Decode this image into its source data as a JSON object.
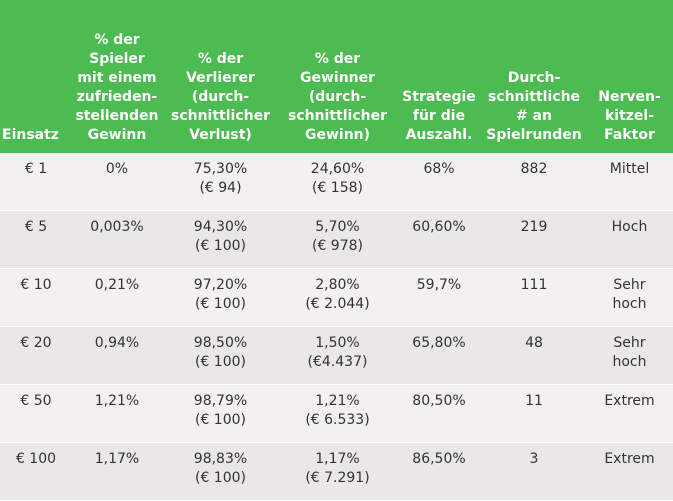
{
  "table": {
    "headers": [
      [
        "Einsatz"
      ],
      [
        "% der",
        "Spieler",
        "mit einem",
        "zufrieden-",
        "stellenden",
        "Gewinn"
      ],
      [
        "% der",
        "Verlierer",
        "(durch-",
        "schnittlicher",
        "Verlust)"
      ],
      [
        "% der",
        "Gewinner",
        "(durch-",
        "schnittlicher",
        "Gewinn)"
      ],
      [
        "Strategie",
        "für die",
        "Auszahl."
      ],
      [
        "Durch-",
        "schnittliche",
        "# an",
        "Spielrunden"
      ],
      [
        "Nerven-",
        "kitzel-",
        "Faktor"
      ]
    ],
    "rows": [
      [
        [
          "€ 1"
        ],
        [
          "0%"
        ],
        [
          "75,30%",
          "(€ 94)"
        ],
        [
          "24,60%",
          "(€ 158)"
        ],
        [
          "68%"
        ],
        [
          "882"
        ],
        [
          "Mittel"
        ]
      ],
      [
        [
          "€ 5"
        ],
        [
          "0,003%"
        ],
        [
          "94,30%",
          "(€ 100)"
        ],
        [
          "5,70%",
          "(€ 978)"
        ],
        [
          "60,60%"
        ],
        [
          "219"
        ],
        [
          "Hoch"
        ]
      ],
      [
        [
          "€ 10"
        ],
        [
          "0,21%"
        ],
        [
          "97,20%",
          "(€ 100)"
        ],
        [
          "2,80%",
          "(€ 2.044)"
        ],
        [
          "59,7%"
        ],
        [
          "111"
        ],
        [
          "Sehr",
          "hoch"
        ]
      ],
      [
        [
          "€ 20"
        ],
        [
          "0,94%"
        ],
        [
          "98,50%",
          "(€ 100)"
        ],
        [
          "1,50%",
          "(€4.437)"
        ],
        [
          "65,80%"
        ],
        [
          "48"
        ],
        [
          "Sehr",
          "hoch"
        ]
      ],
      [
        [
          "€ 50"
        ],
        [
          "1,21%"
        ],
        [
          "98,79%",
          "(€ 100)"
        ],
        [
          "1,21%",
          "(€ 6.533)"
        ],
        [
          "80,50%"
        ],
        [
          "11"
        ],
        [
          "Extrem"
        ]
      ],
      [
        [
          "€ 100"
        ],
        [
          "1,17%"
        ],
        [
          "98,83%",
          "(€ 100)"
        ],
        [
          "1,17%",
          "(€ 7.291)"
        ],
        [
          "86,50%"
        ],
        [
          "3"
        ],
        [
          "Extrem"
        ]
      ]
    ]
  }
}
